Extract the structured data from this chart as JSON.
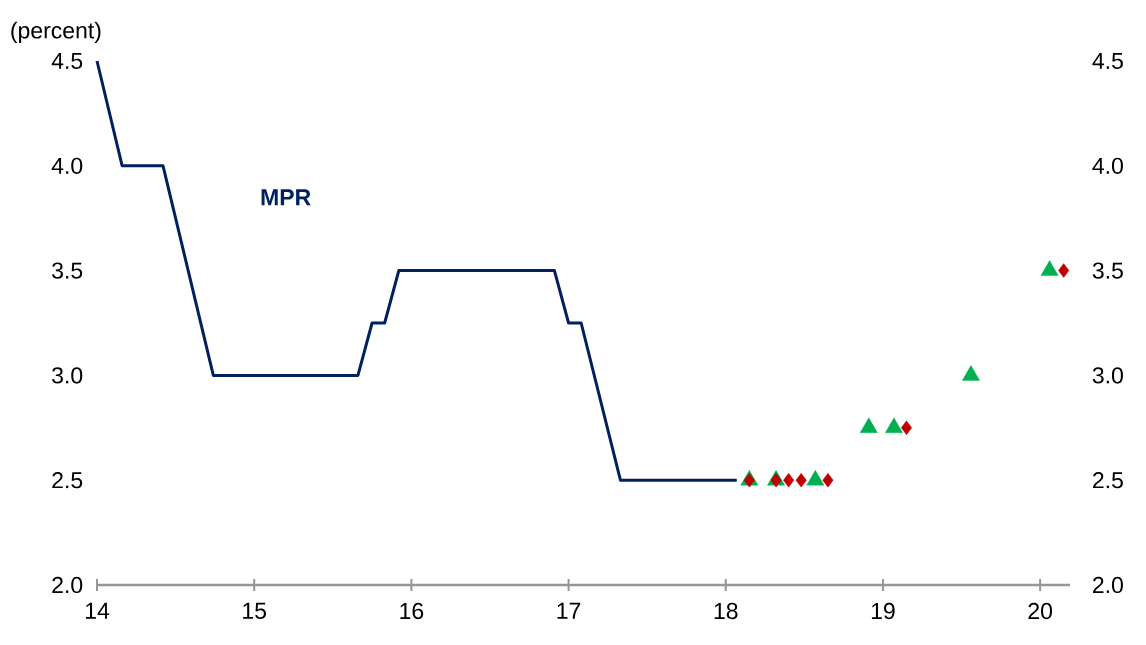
{
  "chart_data": {
    "type": "line",
    "ylabel": "(percent)",
    "xlim": [
      14,
      20.19
    ],
    "xticks": [
      14,
      15,
      16,
      17,
      18,
      19,
      20
    ],
    "ylim": [
      2,
      4.5
    ],
    "yticks": [
      {
        "value": 2,
        "label": "2.0"
      },
      {
        "value": 2.5,
        "label": "2.5"
      },
      {
        "value": 3,
        "label": "3.0"
      },
      {
        "value": 3.5,
        "label": "3.5"
      },
      {
        "value": 4,
        "label": "4.0"
      },
      {
        "value": 4.5,
        "label": "4.5"
      }
    ],
    "y2lim": [
      2,
      4.5
    ],
    "y2ticks": [
      {
        "value": 2,
        "label": "2.0"
      },
      {
        "value": 2.5,
        "label": "2.5"
      },
      {
        "value": 3,
        "label": "3.0"
      },
      {
        "value": 3.5,
        "label": "3.5"
      },
      {
        "value": 4,
        "label": "4.0"
      },
      {
        "value": 4.5,
        "label": "4.5"
      }
    ],
    "series": [
      {
        "name": "MPR",
        "color": "#002060",
        "marker": "none",
        "x": [
          14.0,
          14.16,
          14.42,
          14.74,
          15.66,
          15.75,
          15.83,
          15.92,
          16.91,
          17.0,
          17.08,
          17.33,
          18.07
        ],
        "values": [
          4.5,
          4.0,
          4.0,
          3.0,
          3.0,
          3.25,
          3.25,
          3.5,
          3.5,
          3.25,
          3.25,
          2.5,
          2.5
        ]
      },
      {
        "type": "scatter",
        "color": "#00b050",
        "marker": "triangle",
        "x": [
          18.15,
          18.32,
          18.57,
          18.91,
          19.07,
          19.56,
          20.06
        ],
        "values": [
          2.5,
          2.5,
          2.5,
          2.75,
          2.75,
          3.0,
          3.5
        ]
      },
      {
        "type": "scatter",
        "color": "#c00000",
        "marker": "diamond",
        "x": [
          18.15,
          18.32,
          18.4,
          18.48,
          18.65,
          19.15,
          20.15
        ],
        "values": [
          2.5,
          2.5,
          2.5,
          2.5,
          2.5,
          2.75,
          3.5
        ]
      }
    ]
  }
}
